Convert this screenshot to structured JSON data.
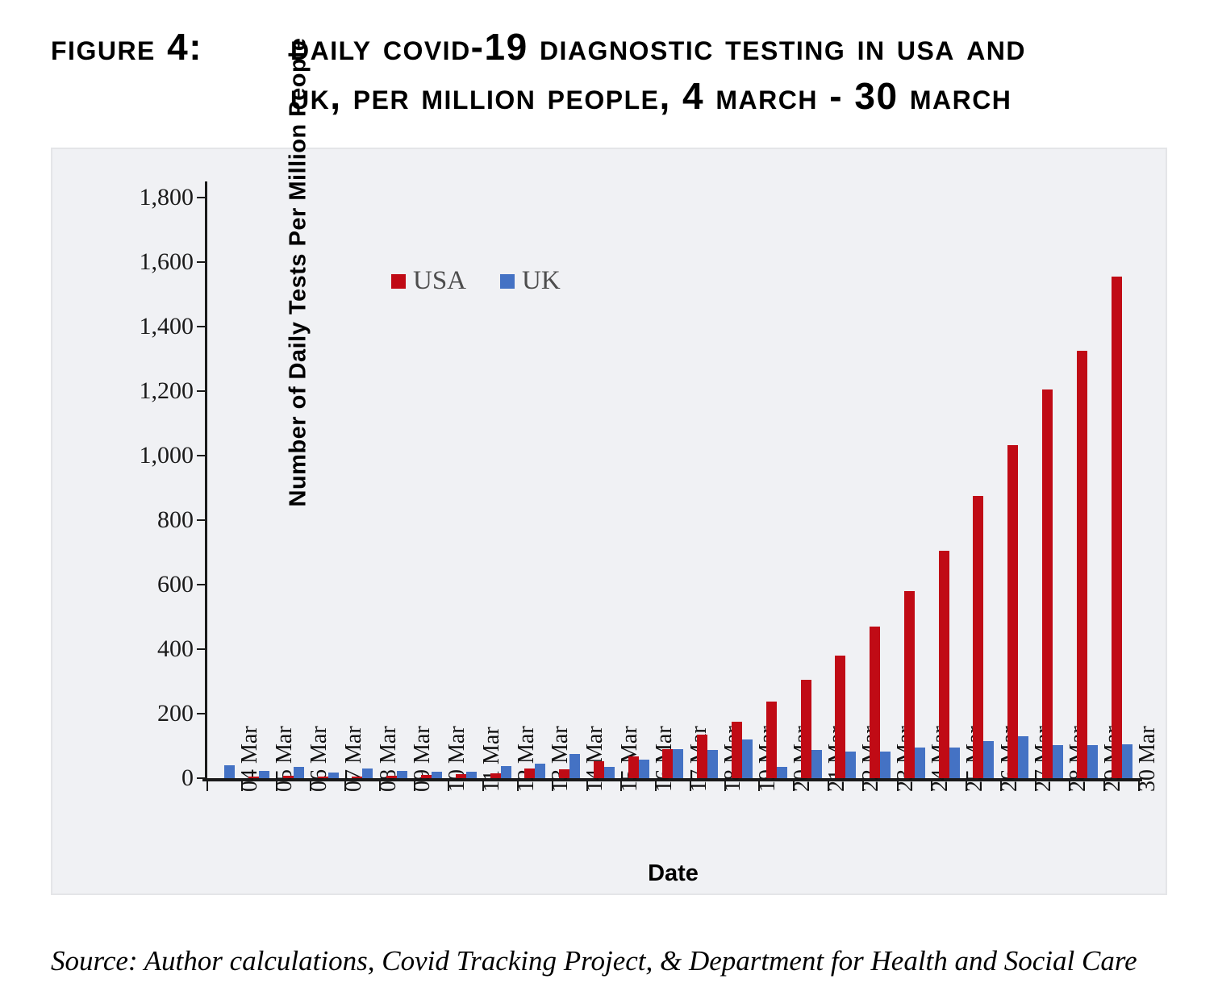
{
  "figure": {
    "label": "Figure 4:",
    "title_line1": "Daily COVID-19 diagnostic testing in USA and",
    "title_line2": "UK, Per million people, 4 March - 30 March"
  },
  "source": "Source: Author calculations, Covid Tracking Project, & Department for Health and Social Care",
  "chart_data": {
    "type": "bar",
    "title": "Daily COVID-19 diagnostic testing in USA and UK, per million people, 4 March - 30 March",
    "xlabel": "Date",
    "ylabel": "Number of Daily Tests Per Million People",
    "ylim": [
      0,
      1800
    ],
    "y_tick_step": 200,
    "grid": false,
    "legend_position": "inside-top-left",
    "plot_background": "#f0f1f4",
    "y_ticks": [
      {
        "value": 0,
        "label": "0"
      },
      {
        "value": 200,
        "label": "200"
      },
      {
        "value": 400,
        "label": "400"
      },
      {
        "value": 600,
        "label": "600"
      },
      {
        "value": 800,
        "label": "800"
      },
      {
        "value": 1000,
        "label": "1,000"
      },
      {
        "value": 1200,
        "label": "1,200"
      },
      {
        "value": 1400,
        "label": "1,400"
      },
      {
        "value": 1600,
        "label": "1,600"
      },
      {
        "value": 1800,
        "label": "1,800"
      }
    ],
    "categories": [
      "04 Mar",
      "05 Mar",
      "06 Mar",
      "07 Mar",
      "08 Mar",
      "09 Mar",
      "10 Mar",
      "11 Mar",
      "12 Mar",
      "13 Mar",
      "14 Mar",
      "15 Mar",
      "16 Mar",
      "17 Mar",
      "18 Mar",
      "19 Mar",
      "20 Mar",
      "21 Mar",
      "22 Mar",
      "23 Mar",
      "24 Mar",
      "25 Mar",
      "26 Mar",
      "27 Mar",
      "28 Mar",
      "29 Mar",
      "30 Mar"
    ],
    "series": [
      {
        "name": "USA",
        "color": "#c00b15",
        "values": [
          0,
          6,
          7,
          5,
          6,
          7,
          10,
          13,
          15,
          31,
          28,
          52,
          68,
          91,
          134,
          174,
          238,
          305,
          380,
          470,
          580,
          705,
          876,
          1032,
          1206,
          1324,
          1555
        ]
      },
      {
        "name": "UK",
        "color": "#4472c4",
        "values": [
          41,
          23,
          36,
          18,
          31,
          23,
          19,
          20,
          37,
          45,
          74,
          35,
          57,
          91,
          87,
          121,
          34,
          87,
          82,
          82,
          94,
          94,
          116,
          130,
          103,
          103,
          105
        ]
      }
    ]
  }
}
